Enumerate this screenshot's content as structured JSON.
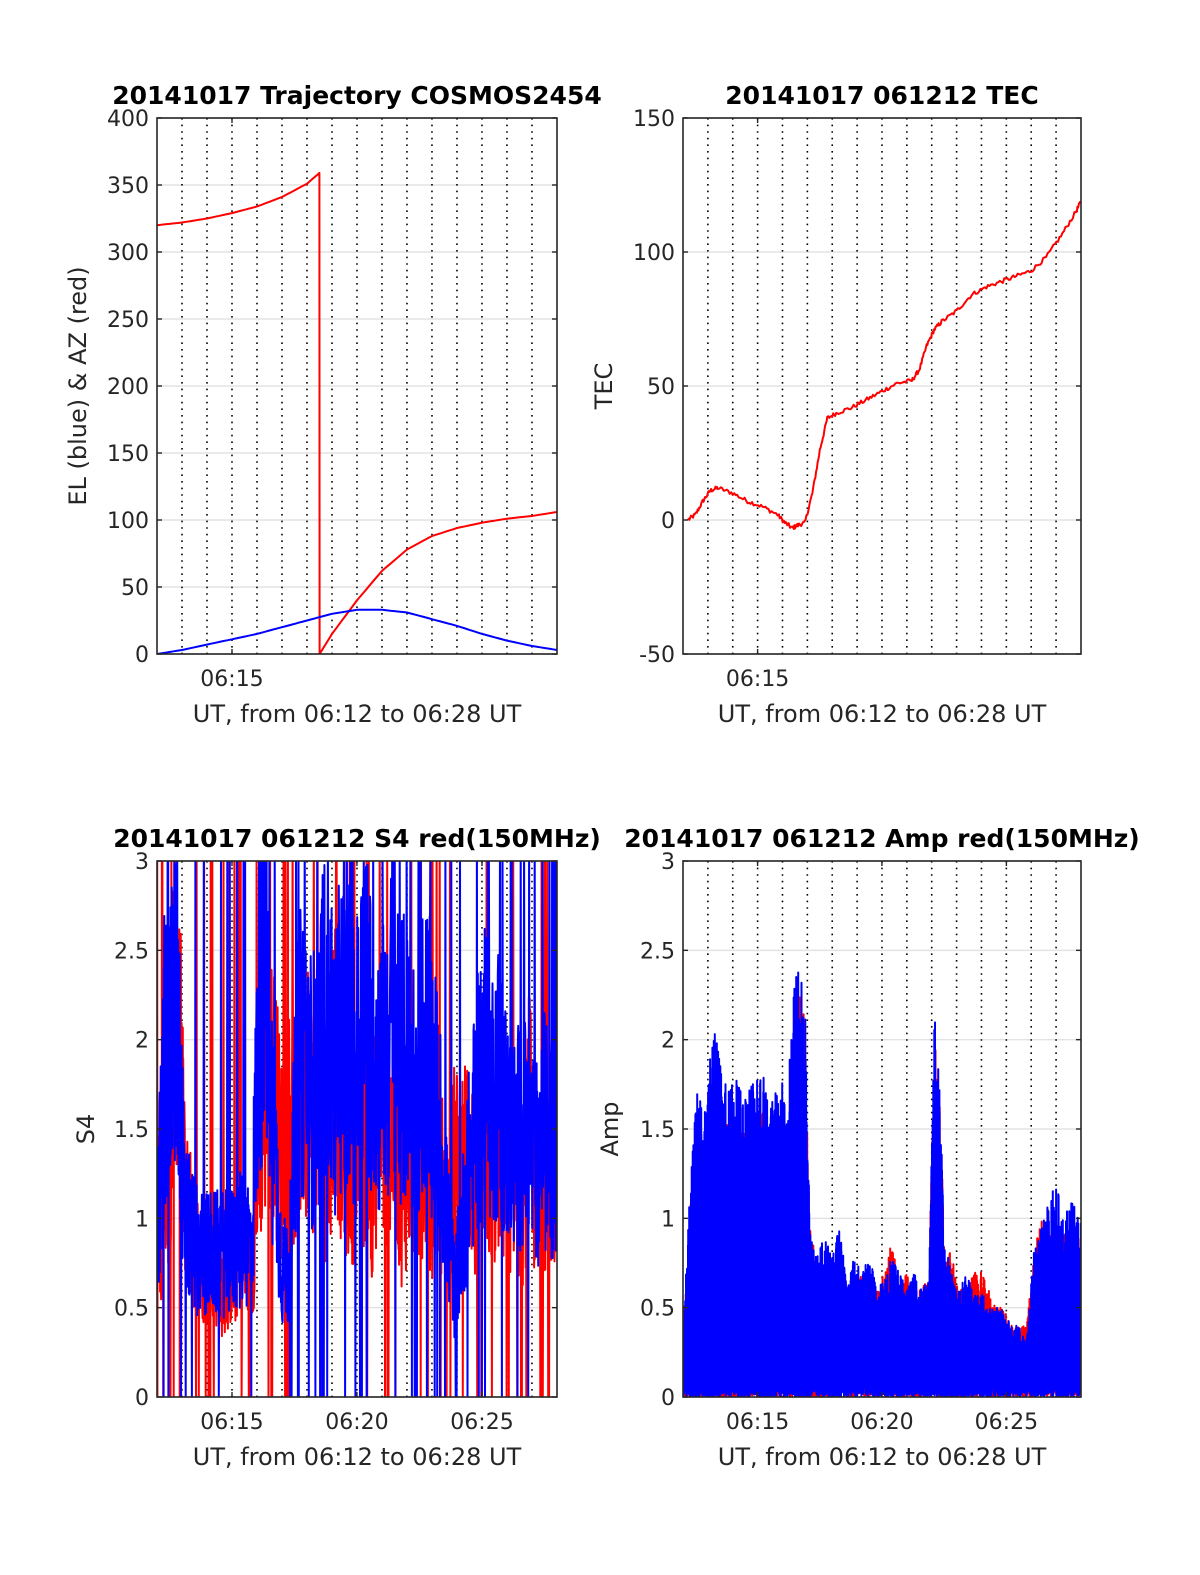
{
  "chart_data": [
    {
      "type": "line",
      "title": "20141017 Trajectory COSMOS2454",
      "xlabel": "UT, from 06:12 to 06:28 UT",
      "ylabel": "EL (blue) & AZ (red)",
      "xlim": [
        6.2,
        6.4667
      ],
      "ylim": [
        0,
        400
      ],
      "yticks": [
        0,
        50,
        100,
        150,
        200,
        250,
        300,
        350,
        400
      ],
      "xticks": [
        {
          "value": 6.25,
          "label": "06:15"
        }
      ],
      "grid": true,
      "series": [
        {
          "color": "#ff0000",
          "style": "smooth",
          "x": [
            6.2,
            6.2167,
            6.2333,
            6.25,
            6.2667,
            6.2833,
            6.3,
            6.3083,
            6.3084,
            6.3167,
            6.3333,
            6.35,
            6.3667,
            6.3833,
            6.4,
            6.4167,
            6.4333,
            6.45,
            6.4667
          ],
          "y": [
            320,
            322,
            325,
            329,
            334,
            341,
            351,
            359,
            0,
            15,
            40,
            62,
            78,
            88,
            94,
            98,
            101,
            103,
            106
          ]
        },
        {
          "color": "#0000ff",
          "style": "smooth",
          "x": [
            6.2,
            6.2167,
            6.2333,
            6.25,
            6.2667,
            6.2833,
            6.3,
            6.3167,
            6.3333,
            6.35,
            6.3667,
            6.3833,
            6.4,
            6.4167,
            6.4333,
            6.45,
            6.4667
          ],
          "y": [
            0,
            3,
            7,
            11,
            15,
            20,
            25,
            30,
            33,
            33,
            31,
            26,
            21,
            15,
            10,
            6,
            3
          ]
        }
      ]
    },
    {
      "type": "line",
      "title": "20141017 061212 TEC",
      "xlabel": "UT, from 06:12 to 06:28 UT",
      "ylabel": "TEC",
      "xlim": [
        6.2,
        6.4667
      ],
      "ylim": [
        -50,
        150
      ],
      "yticks": [
        -50,
        0,
        50,
        100,
        150
      ],
      "xticks": [
        {
          "value": 6.25,
          "label": "06:15"
        }
      ],
      "grid": true,
      "series": [
        {
          "color": "#ff0000",
          "style": "jagged",
          "x": [
            6.2033,
            6.2083,
            6.2133,
            6.2183,
            6.2233,
            6.2333,
            6.2433,
            6.2533,
            6.2633,
            6.2683,
            6.2733,
            6.2767,
            6.2817,
            6.2867,
            6.2917,
            6.2967,
            6.3033,
            6.3133,
            6.3233,
            6.3333,
            6.3433,
            6.3533,
            6.3583,
            6.3633,
            6.3683,
            6.3733,
            6.3833,
            6.3933,
            6.4033,
            6.4133,
            6.4233,
            6.4333,
            6.4433,
            6.4533,
            6.4633,
            6.4667
          ],
          "y": [
            0,
            2,
            7,
            11,
            12,
            10,
            7,
            5,
            2,
            -1,
            -3,
            -2,
            -1,
            10,
            26,
            38,
            40,
            42,
            45,
            48,
            51,
            52,
            56,
            65,
            71,
            74,
            78,
            84,
            87,
            89,
            91,
            93,
            98,
            106,
            115,
            119
          ]
        }
      ]
    },
    {
      "type": "line",
      "title": "20141017 061212 S4 red(150MHz)",
      "xlabel": "UT, from 06:12 to 06:28 UT",
      "ylabel": "S4",
      "xlim": [
        6.2,
        6.4667
      ],
      "ylim": [
        0,
        3
      ],
      "yticks": [
        0,
        0.5,
        1,
        1.5,
        2,
        2.5,
        3
      ],
      "xticks": [
        {
          "value": 6.25,
          "label": "06:15"
        },
        {
          "value": 6.3333,
          "label": "06:20"
        },
        {
          "value": 6.4167,
          "label": "06:25"
        }
      ],
      "grid": true,
      "series": [
        {
          "color": "#ff0000",
          "style": "noise",
          "x": [
            6.2,
            6.2033,
            6.205,
            6.2083,
            6.2117,
            6.215,
            6.2183,
            6.2233,
            6.2283,
            6.2333,
            6.2383,
            6.2433,
            6.2483,
            6.2533,
            6.2583,
            6.2633,
            6.2683,
            6.2733,
            6.2783,
            6.2833,
            6.2883,
            6.2933,
            6.2983,
            6.3033,
            6.3083,
            6.3133,
            6.3183,
            6.3233,
            6.3283,
            6.3333,
            6.3383,
            6.3433,
            6.3483,
            6.3533,
            6.3583,
            6.3633,
            6.3683,
            6.3733,
            6.3783,
            6.3833,
            6.3883,
            6.3933,
            6.3983,
            6.4033,
            6.4083,
            6.4133,
            6.4183,
            6.4233,
            6.4283,
            6.4333,
            6.4383,
            6.4433,
            6.4483,
            6.4533,
            6.4583,
            6.4633,
            6.4667
          ],
          "y": [
            1.3,
            0.9,
            1.6,
            1.2,
            2.5,
            2.0,
            1.2,
            0.9,
            0.8,
            0.7,
            0.7,
            0.6,
            0.7,
            0.7,
            0.8,
            0.7,
            1.5,
            1.8,
            1.7,
            1.3,
            1.6,
            1.4,
            1.9,
            1.6,
            1.7,
            1.3,
            2.0,
            1.5,
            1.3,
            1.4,
            1.5,
            1.2,
            1.7,
            1.3,
            1.6,
            1.1,
            1.4,
            1.2,
            1.5,
            1.2,
            1.3,
            1.0,
            1.3,
            1.2,
            1.5,
            1.0,
            1.6,
            1.1,
            1.5,
            1.1,
            1.4,
            1.0,
            1.6,
            1.0,
            1.3,
            1.2,
            1.2
          ]
        },
        {
          "color": "#0000ff",
          "style": "noise",
          "x": [
            6.2,
            6.2033,
            6.205,
            6.2083,
            6.2117,
            6.215,
            6.2183,
            6.2233,
            6.2283,
            6.2333,
            6.2383,
            6.2433,
            6.2483,
            6.2533,
            6.2583,
            6.2633,
            6.2683,
            6.2733,
            6.2783,
            6.2833,
            6.2883,
            6.2933,
            6.2983,
            6.3033,
            6.3083,
            6.3133,
            6.3183,
            6.3233,
            6.3283,
            6.3333,
            6.3383,
            6.3433,
            6.3483,
            6.3533,
            6.3583,
            6.3633,
            6.3683,
            6.3733,
            6.3783,
            6.3833,
            6.3883,
            6.3933,
            6.3983,
            6.4033,
            6.4083,
            6.4133,
            6.4183,
            6.4233,
            6.4283,
            6.4333,
            6.4383,
            6.4433,
            6.4483,
            6.4533,
            6.4583,
            6.4633,
            6.4667
          ],
          "y": [
            1.0,
            1.4,
            2.0,
            1.8,
            2.3,
            1.8,
            1.0,
            0.9,
            0.8,
            0.8,
            0.8,
            0.8,
            0.8,
            0.85,
            0.9,
            0.85,
            2.3,
            2.0,
            1.4,
            0.7,
            0.7,
            1.8,
            2.0,
            1.7,
            1.9,
            2.2,
            1.8,
            2.1,
            2.0,
            1.9,
            2.3,
            2.0,
            1.8,
            1.9,
            2.2,
            1.9,
            1.8,
            1.7,
            2.0,
            1.8,
            1.5,
            1.0,
            0.6,
            0.9,
            1.3,
            1.6,
            1.9,
            1.7,
            1.8,
            1.5,
            1.4,
            1.5,
            1.4,
            1.3,
            1.5,
            1.4,
            1.4
          ]
        }
      ]
    },
    {
      "type": "line",
      "title": "20141017 061212 Amp red(150MHz)",
      "xlabel": "UT, from 06:12 to 06:28 UT",
      "ylabel": "Amp",
      "xlim": [
        6.2,
        6.4667
      ],
      "ylim": [
        0,
        3
      ],
      "yticks": [
        0,
        0.5,
        1,
        1.5,
        2,
        2.5,
        3
      ],
      "xticks": [
        {
          "value": 6.25,
          "label": "06:15"
        },
        {
          "value": 6.3333,
          "label": "06:20"
        },
        {
          "value": 6.4167,
          "label": "06:25"
        }
      ],
      "grid": true,
      "series": [
        {
          "color": "#ff0000",
          "style": "spikes",
          "x": [
            6.2,
            6.205,
            6.21,
            6.2133,
            6.2167,
            6.22,
            6.225,
            6.23,
            6.235,
            6.24,
            6.245,
            6.25,
            6.255,
            6.26,
            6.265,
            6.27,
            6.275,
            6.2783,
            6.2817,
            6.285,
            6.29,
            6.295,
            6.3,
            6.305,
            6.31,
            6.315,
            6.32,
            6.325,
            6.33,
            6.335,
            6.34,
            6.345,
            6.35,
            6.355,
            6.36,
            6.365,
            6.3683,
            6.3717,
            6.375,
            6.38,
            6.385,
            6.39,
            6.395,
            6.4,
            6.405,
            6.41,
            6.415,
            6.42,
            6.425,
            6.43,
            6.435,
            6.44,
            6.445,
            6.45,
            6.455,
            6.46,
            6.4667
          ],
          "y": [
            0.4,
            1.1,
            1.5,
            1.3,
            1.5,
            1.6,
            1.5,
            1.6,
            1.5,
            1.5,
            1.6,
            1.6,
            1.6,
            1.5,
            1.6,
            1.4,
            2.2,
            2.3,
            2.1,
            1.0,
            0.7,
            0.7,
            0.7,
            0.8,
            0.6,
            0.6,
            0.7,
            0.7,
            0.6,
            0.7,
            0.9,
            0.6,
            0.7,
            0.6,
            0.6,
            0.7,
            2.0,
            1.8,
            0.9,
            0.8,
            0.6,
            0.6,
            0.7,
            0.7,
            0.6,
            0.5,
            0.5,
            0.4,
            0.4,
            0.4,
            0.8,
            1.0,
            0.9,
            1.0,
            0.9,
            1.0,
            0.9
          ]
        },
        {
          "color": "#0000ff",
          "style": "spikes",
          "x": [
            6.2,
            6.205,
            6.21,
            6.2133,
            6.2167,
            6.22,
            6.225,
            6.23,
            6.235,
            6.24,
            6.245,
            6.25,
            6.255,
            6.26,
            6.265,
            6.27,
            6.275,
            6.2783,
            6.2817,
            6.285,
            6.29,
            6.295,
            6.3,
            6.305,
            6.31,
            6.315,
            6.32,
            6.325,
            6.33,
            6.335,
            6.34,
            6.345,
            6.35,
            6.355,
            6.36,
            6.365,
            6.3683,
            6.3717,
            6.375,
            6.38,
            6.385,
            6.39,
            6.395,
            6.4,
            6.405,
            6.41,
            6.415,
            6.42,
            6.425,
            6.43,
            6.435,
            6.44,
            6.445,
            6.45,
            6.455,
            6.46,
            6.4667
          ],
          "y": [
            0.4,
            1.2,
            1.9,
            1.5,
            1.8,
            2.1,
            1.9,
            1.7,
            1.9,
            1.7,
            1.8,
            1.9,
            1.8,
            1.7,
            1.8,
            1.7,
            2.4,
            2.4,
            2.2,
            1.0,
            0.8,
            0.9,
            0.8,
            1.0,
            0.6,
            0.8,
            0.7,
            0.8,
            0.6,
            0.7,
            0.8,
            0.7,
            0.6,
            0.7,
            0.6,
            0.7,
            2.15,
            1.9,
            0.9,
            0.7,
            0.6,
            0.7,
            0.6,
            0.6,
            0.5,
            0.5,
            0.5,
            0.4,
            0.4,
            0.3,
            0.8,
            1.0,
            1.1,
            1.2,
            1.0,
            1.1,
            1.0
          ]
        }
      ]
    }
  ]
}
